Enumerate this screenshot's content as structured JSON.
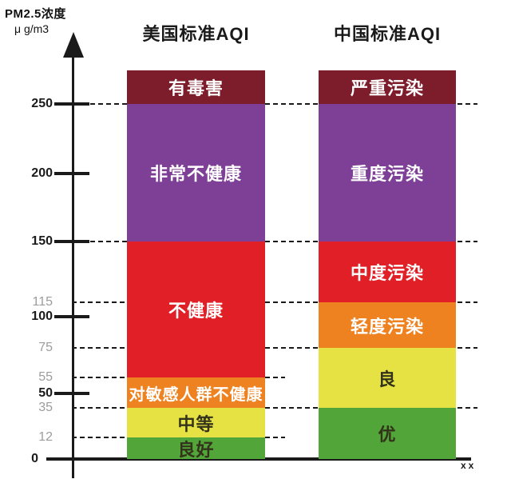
{
  "page": {
    "background": "#ffffff"
  },
  "chart_data": {
    "type": "bar",
    "subtype": "stacked-range-comparison",
    "title_left_column": "美国标准AQI",
    "title_right_column": "中国标准AQI",
    "ylabel_line1": "PM2.5浓度",
    "ylabel_line2": "μ g/m3",
    "ylabel_unit": "μg/m3",
    "ylim": [
      0,
      280
    ],
    "x_end_label": "xx",
    "grid": "dashed horizontal reference lines at 12, 35, 55, 75, 115, 150, 250",
    "legend_position": "none",
    "colors": {
      "maroon": "#7d1c2b",
      "purple": "#7e4096",
      "red": "#e01f26",
      "orange": "#ee8220",
      "yellow": "#e6e243",
      "green": "#52a538",
      "axis": "#1a1a1a",
      "tick_label_major": "#1a1a1a",
      "tick_label_minor": "#9c9c9c",
      "label_light": "#ffffff",
      "label_dark": "#33331c"
    },
    "bars": [
      {
        "title": "美国标准AQI",
        "segments": [
          {
            "label": "良好",
            "from": 0,
            "to": 12,
            "color": "green",
            "text": "dark"
          },
          {
            "label": "中等",
            "from": 12,
            "to": 35,
            "color": "yellow",
            "text": "dark"
          },
          {
            "label": "对敏感人群不健康",
            "from": 35,
            "to": 55,
            "color": "orange",
            "text": "light"
          },
          {
            "label": "不健康",
            "from": 55,
            "to": 150,
            "color": "red",
            "text": "light"
          },
          {
            "label": "非常不健康",
            "from": 150,
            "to": 250,
            "color": "purple",
            "text": "light"
          },
          {
            "label": "有毒害",
            "from": 250,
            "to": "top",
            "color": "maroon",
            "text": "light"
          }
        ]
      },
      {
        "title": "中国标准AQI",
        "segments": [
          {
            "label": "优",
            "from": 0,
            "to": 35,
            "color": "green",
            "text": "dark"
          },
          {
            "label": "良",
            "from": 35,
            "to": 75,
            "color": "yellow",
            "text": "dark"
          },
          {
            "label": "轻度污染",
            "from": 75,
            "to": 115,
            "color": "orange",
            "text": "light"
          },
          {
            "label": "中度污染",
            "from": 115,
            "to": 150,
            "color": "red",
            "text": "light"
          },
          {
            "label": "重度污染",
            "from": 150,
            "to": 250,
            "color": "purple",
            "text": "light"
          },
          {
            "label": "严重污染",
            "from": 250,
            "to": "top",
            "color": "maroon",
            "text": "light"
          }
        ]
      }
    ],
    "yticks": [
      {
        "label": "250",
        "value": 250,
        "tick": true,
        "emphasis": "major",
        "dashes": [
          "left",
          "mid",
          "right"
        ]
      },
      {
        "label": "200",
        "value": 200,
        "tick": true,
        "emphasis": "major",
        "dashes": []
      },
      {
        "label": "150",
        "value": 150,
        "tick": true,
        "emphasis": "major",
        "dashes": [
          "left",
          "mid",
          "right"
        ]
      },
      {
        "label": "115",
        "value": 115,
        "tick": false,
        "emphasis": "minor",
        "dashes": [
          "left",
          "mid",
          "right"
        ]
      },
      {
        "label": "100",
        "value": 100,
        "tick": true,
        "emphasis": "major",
        "dashes": []
      },
      {
        "label": "75",
        "value": 75,
        "tick": false,
        "emphasis": "minor",
        "dashes": [
          "left",
          "mid",
          "right"
        ]
      },
      {
        "label": "55",
        "value": 55,
        "tick": false,
        "emphasis": "minor",
        "dashes": [
          "left",
          "midstub"
        ]
      },
      {
        "label": "50",
        "value": 50,
        "tick": true,
        "emphasis": "major",
        "dashes": []
      },
      {
        "label": "35",
        "value": 35,
        "tick": false,
        "emphasis": "minor",
        "dashes": [
          "left",
          "mid",
          "right"
        ]
      },
      {
        "label": "12",
        "value": 12,
        "tick": false,
        "emphasis": "minor",
        "dashes": [
          "left",
          "midstub"
        ]
      },
      {
        "label": "0",
        "value": 0,
        "tick": false,
        "emphasis": "major",
        "dashes": []
      }
    ]
  }
}
